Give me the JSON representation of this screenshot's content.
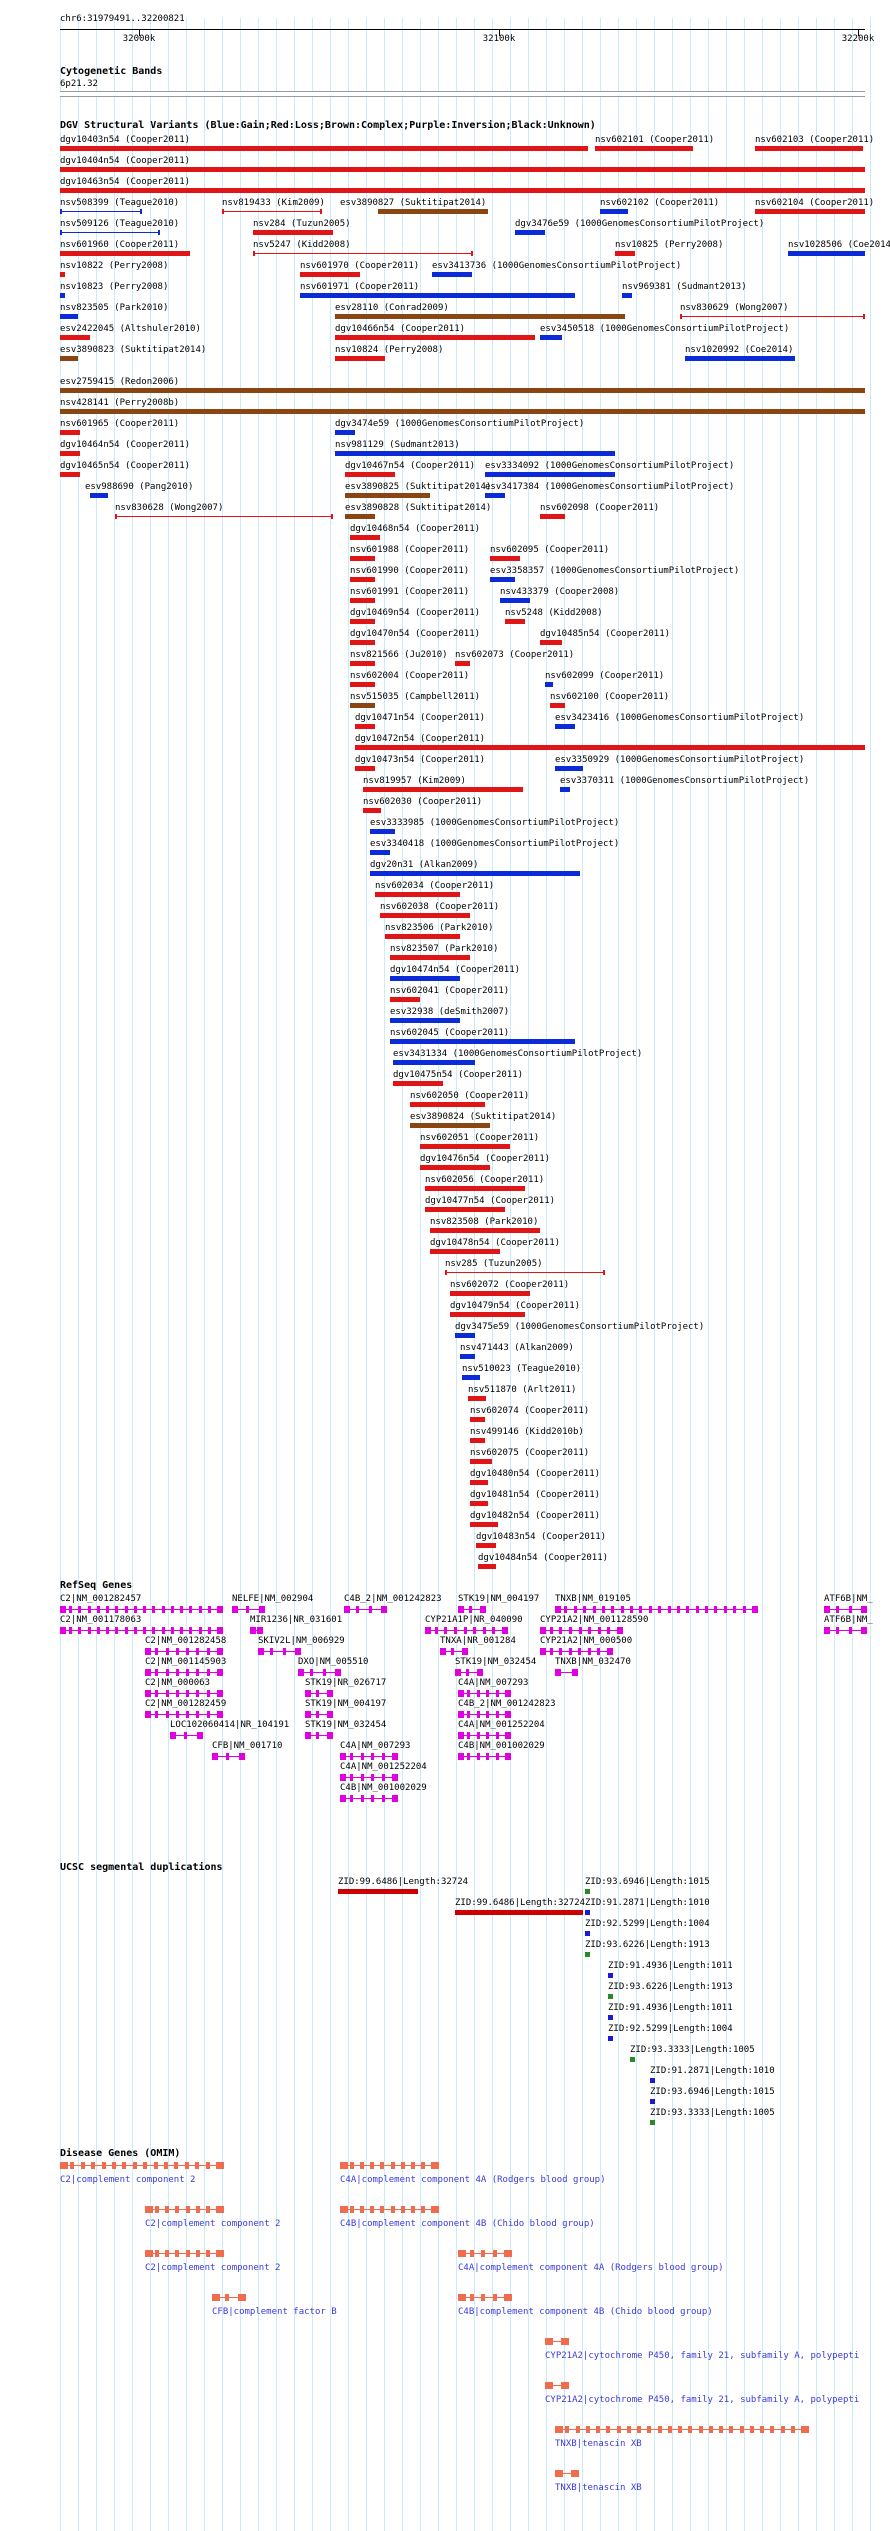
{
  "browser": {
    "position": "chr6:31979491..32200821",
    "ruler_ticks": [
      "32000k",
      "32100k",
      "32200k"
    ]
  },
  "colors": {
    "gain": "#0b2ad8",
    "loss": "#e01616",
    "complex": "#8b4513",
    "gene": "#e000e0",
    "disease": "#ef6c4f",
    "disease_text": "#3a3adb",
    "segdup_red": "#cc0000",
    "segdup_blue": "#1a1ad8",
    "segdup_green": "#2a8a2a"
  },
  "tracks": {
    "cytoband_title": "Cytogenetic Bands",
    "cytoband_label": "6p21.32",
    "dgv_title": "DGV Structural Variants (Blue:Gain;Red:Loss;Brown:Complex;Purple:Inversion;Black:Unknown)",
    "refseq_title": "RefSeq Genes",
    "ucsc_title": "UCSC segmental duplications",
    "disease_title": "Disease Genes (OMIM)"
  },
  "dgv": [
    {
      "label": "dgv10403n54 (Cooper2011)",
      "c": "red"
    },
    {
      "label": "nsv602101 (Cooper2011)",
      "c": "red"
    },
    {
      "label": "nsv602103 (Cooper2011)",
      "c": "red"
    },
    {
      "label": "dgv10404n54 (Cooper2011)",
      "c": "red"
    },
    {
      "label": "dgv10463n54 (Cooper2011)",
      "c": "red"
    },
    {
      "label": "nsv508399 (Teague2010)",
      "c": "blue"
    },
    {
      "label": "nsv819433 (Kim2009)",
      "c": "red"
    },
    {
      "label": "esv3890827 (Suktitipat2014)",
      "c": "brown"
    },
    {
      "label": "nsv602102 (Cooper2011)",
      "c": "blue"
    },
    {
      "label": "nsv602104 (Cooper2011)",
      "c": "red"
    },
    {
      "label": "nsv509126 (Teague2010)",
      "c": "blue"
    },
    {
      "label": "nsv284 (Tuzun2005)",
      "c": "red"
    },
    {
      "label": "dgv3476e59 (1000GenomesConsortiumPilotProject)",
      "c": "blue"
    },
    {
      "label": "nsv601960 (Cooper2011)",
      "c": "red"
    },
    {
      "label": "nsv5247 (Kidd2008)",
      "c": "red"
    },
    {
      "label": "nsv10825 (Perry2008)",
      "c": "red"
    },
    {
      "label": "nsv1028506 (Coe2014)",
      "c": "blue"
    },
    {
      "label": "nsv10822 (Perry2008)",
      "c": "red"
    },
    {
      "label": "nsv601970 (Cooper2011)",
      "c": "red"
    },
    {
      "label": "esv3413736 (1000GenomesConsortiumPilotProject)",
      "c": "blue"
    },
    {
      "label": "nsv10823 (Perry2008)",
      "c": "blue"
    },
    {
      "label": "nsv601971 (Cooper2011)",
      "c": "blue"
    },
    {
      "label": "nsv969381 (Sudmant2013)",
      "c": "blue"
    },
    {
      "label": "nsv823505 (Park2010)",
      "c": "blue"
    },
    {
      "label": "esv28110 (Conrad2009)",
      "c": "brown"
    },
    {
      "label": "nsv830629 (Wong2007)",
      "c": "red"
    },
    {
      "label": "esv2422045 (Altshuler2010)",
      "c": "red"
    },
    {
      "label": "dgv10466n54 (Cooper2011)",
      "c": "red"
    },
    {
      "label": "esv3450518 (1000GenomesConsortiumPilotProject)",
      "c": "blue"
    },
    {
      "label": "esv3890823 (Suktitipat2014)",
      "c": "brown"
    },
    {
      "label": "nsv10824 (Perry2008)",
      "c": "red"
    },
    {
      "label": "nsv1020992 (Coe2014)",
      "c": "blue"
    },
    {
      "label": "esv2759415 (Redon2006)",
      "c": "brown"
    },
    {
      "label": "nsv428141 (Perry2008b)",
      "c": "brown"
    },
    {
      "label": "nsv601965 (Cooper2011)",
      "c": "red"
    },
    {
      "label": "dgv3474e59 (1000GenomesConsortiumPilotProject)",
      "c": "blue"
    },
    {
      "label": "dgv10464n54 (Cooper2011)",
      "c": "red"
    },
    {
      "label": "nsv981129 (Sudmant2013)",
      "c": "blue"
    },
    {
      "label": "dgv10465n54 (Cooper2011)",
      "c": "red"
    },
    {
      "label": "dgv10467n54 (Cooper2011)",
      "c": "red"
    },
    {
      "label": "esv3334092 (1000GenomesConsortiumPilotProject)",
      "c": "blue"
    },
    {
      "label": "esv988690 (Pang2010)",
      "c": "blue"
    },
    {
      "label": "esv3890825 (Suktitipat2014)",
      "c": "brown"
    },
    {
      "label": "esv3417384 (1000GenomesConsortiumPilotProject)",
      "c": "blue"
    },
    {
      "label": "nsv830628 (Wong2007)",
      "c": "red"
    },
    {
      "label": "esv3890828 (Suktitipat2014)",
      "c": "brown"
    },
    {
      "label": "nsv602098 (Cooper2011)",
      "c": "red"
    },
    {
      "label": "dgv10468n54 (Cooper2011)",
      "c": "red"
    },
    {
      "label": "nsv601988 (Cooper2011)",
      "c": "red"
    },
    {
      "label": "nsv602095 (Cooper2011)",
      "c": "red"
    },
    {
      "label": "nsv601990 (Cooper2011)",
      "c": "red"
    },
    {
      "label": "esv3358357 (1000GenomesConsortiumPilotProject)",
      "c": "blue"
    },
    {
      "label": "nsv601991 (Cooper2011)",
      "c": "red"
    },
    {
      "label": "nsv433379 (Cooper2008)",
      "c": "blue"
    },
    {
      "label": "dgv10469n54 (Cooper2011)",
      "c": "red"
    },
    {
      "label": "nsv5248 (Kidd2008)",
      "c": "red"
    },
    {
      "label": "dgv10470n54 (Cooper2011)",
      "c": "red"
    },
    {
      "label": "dgv10485n54 (Cooper2011)",
      "c": "red"
    },
    {
      "label": "nsv821566 (Ju2010)",
      "c": "red"
    },
    {
      "label": "nsv602073 (Cooper2011)",
      "c": "red"
    },
    {
      "label": "nsv602004 (Cooper2011)",
      "c": "red"
    },
    {
      "label": "nsv602099 (Cooper2011)",
      "c": "blue"
    },
    {
      "label": "nsv515035 (Campbell2011)",
      "c": "brown"
    },
    {
      "label": "nsv602100 (Cooper2011)",
      "c": "red"
    },
    {
      "label": "dgv10471n54 (Cooper2011)",
      "c": "red"
    },
    {
      "label": "esv3423416 (1000GenomesConsortiumPilotProject)",
      "c": "blue"
    },
    {
      "label": "dgv10472n54 (Cooper2011)",
      "c": "red"
    },
    {
      "label": "dgv10473n54 (Cooper2011)",
      "c": "red"
    },
    {
      "label": "esv3350929 (1000GenomesConsortiumPilotProject)",
      "c": "blue"
    },
    {
      "label": "nsv819957 (Kim2009)",
      "c": "red"
    },
    {
      "label": "esv3370311 (1000GenomesConsortiumPilotProject)",
      "c": "blue"
    },
    {
      "label": "nsv602030 (Cooper2011)",
      "c": "red"
    },
    {
      "label": "esv3333985 (1000GenomesConsortiumPilotProject)",
      "c": "blue"
    },
    {
      "label": "esv3340418 (1000GenomesConsortiumPilotProject)",
      "c": "blue"
    },
    {
      "label": "dgv20n31 (Alkan2009)",
      "c": "blue"
    },
    {
      "label": "nsv602034 (Cooper2011)",
      "c": "red"
    },
    {
      "label": "nsv602038 (Cooper2011)",
      "c": "red"
    },
    {
      "label": "nsv823506 (Park2010)",
      "c": "red"
    },
    {
      "label": "nsv823507 (Park2010)",
      "c": "red"
    },
    {
      "label": "dgv10474n54 (Cooper2011)",
      "c": "blue"
    },
    {
      "label": "nsv602041 (Cooper2011)",
      "c": "red"
    },
    {
      "label": "esv32938 (deSmith2007)",
      "c": "blue"
    },
    {
      "label": "nsv602045 (Cooper2011)",
      "c": "blue"
    },
    {
      "label": "esv3431334 (1000GenomesConsortiumPilotProject)",
      "c": "blue"
    },
    {
      "label": "dgv10475n54 (Cooper2011)",
      "c": "red"
    },
    {
      "label": "nsv602050 (Cooper2011)",
      "c": "red"
    },
    {
      "label": "esv3890824 (Suktitipat2014)",
      "c": "brown"
    },
    {
      "label": "nsv602051 (Cooper2011)",
      "c": "red"
    },
    {
      "label": "dgv10476n54 (Cooper2011)",
      "c": "red"
    },
    {
      "label": "nsv602056 (Cooper2011)",
      "c": "red"
    },
    {
      "label": "dgv10477n54 (Cooper2011)",
      "c": "red"
    },
    {
      "label": "nsv823508 (Park2010)",
      "c": "red"
    },
    {
      "label": "dgv10478n54 (Cooper2011)",
      "c": "red"
    },
    {
      "label": "nsv285 (Tuzun2005)",
      "c": "red"
    },
    {
      "label": "nsv602072 (Cooper2011)",
      "c": "red"
    },
    {
      "label": "dgv10479n54 (Cooper2011)",
      "c": "red"
    },
    {
      "label": "dgv3475e59 (1000GenomesConsortiumPilotProject)",
      "c": "blue"
    },
    {
      "label": "nsv471443 (Alkan2009)",
      "c": "blue"
    },
    {
      "label": "nsv510023 (Teague2010)",
      "c": "blue"
    },
    {
      "label": "nsv511870 (Arlt2011)",
      "c": "red"
    },
    {
      "label": "nsv602074 (Cooper2011)",
      "c": "red"
    },
    {
      "label": "nsv499146 (Kidd2010b)",
      "c": "red"
    },
    {
      "label": "nsv602075 (Cooper2011)",
      "c": "red"
    },
    {
      "label": "dgv10480n54 (Cooper2011)",
      "c": "red"
    },
    {
      "label": "dgv10481n54 (Cooper2011)",
      "c": "red"
    },
    {
      "label": "dgv10482n54 (Cooper2011)",
      "c": "red"
    },
    {
      "label": "dgv10483n54 (Cooper2011)",
      "c": "red"
    },
    {
      "label": "dgv10484n54 (Cooper2011)",
      "c": "red"
    }
  ],
  "refseq": [
    "C2|NM_001282457",
    "NELFE|NM_002904",
    "C4B_2|NM_001242823",
    "STK19|NM_004197",
    "TNXB|NM_019105",
    "ATF6B|NM_",
    "C2|NM_001178063",
    "MIR1236|NR_031601",
    "CYP21A1P|NR_040090",
    "CYP21A2|NM_001128590",
    "ATF6B|NM_",
    "C2|NM_001282458",
    "SKIV2L|NM_006929",
    "TNXA|NR_001284",
    "CYP21A2|NM_000500",
    "C2|NM_001145903",
    "DXO|NM_005510",
    "STK19|NM_032454",
    "TNXB|NM_032470",
    "C2|NM_000063",
    "STK19|NR_026717",
    "C4A|NM_007293",
    "C2|NM_001282459",
    "STK19|NM_004197",
    "C4B_2|NM_001242823",
    "LOC102060414|NR_104191",
    "STK19|NM_032454",
    "C4A|NM_001252204",
    "CFB|NM_001710",
    "C4A|NM_007293",
    "C4B|NM_001002029",
    "C4A|NM_001252204",
    "C4B|NM_001002029"
  ],
  "segdups": [
    "ZID:99.6486|Length:32724",
    "ZID:93.6946|Length:1015",
    "ZID:99.6486|Length:32724",
    "ZID:91.2871|Length:1010",
    "ZID:92.5299|Length:1004",
    "ZID:93.6226|Length:1913",
    "ZID:91.4936|Length:1011",
    "ZID:93.6226|Length:1913",
    "ZID:91.4936|Length:1011",
    "ZID:92.5299|Length:1004",
    "ZID:93.3333|Length:1005",
    "ZID:91.2871|Length:1010",
    "ZID:93.6946|Length:1015",
    "ZID:93.3333|Length:1005"
  ],
  "disease": [
    "C2|complement component 2",
    "C4A|complement component 4A (Rodgers blood group)",
    "C2|complement component 2",
    "C4B|complement component 4B (Chido blood group)",
    "C2|complement component 2",
    "C4A|complement component 4A (Rodgers blood group)",
    "CFB|complement factor B",
    "C4B|complement component 4B (Chido blood group)",
    "CYP21A2|cytochrome P450, family 21, subfamily A, polypepti",
    "CYP21A2|cytochrome P450, family 21, subfamily A, polypepti",
    "TNXB|tenascin XB",
    "TNXB|tenascin XB"
  ]
}
